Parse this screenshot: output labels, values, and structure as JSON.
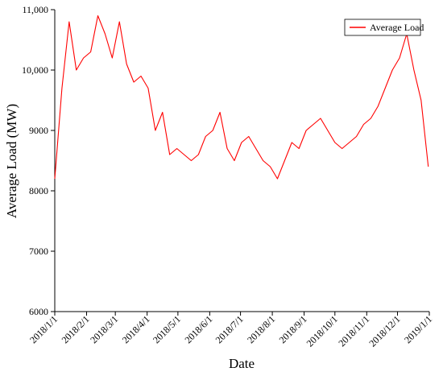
{
  "chart_data": {
    "type": "line",
    "title": "",
    "xlabel": "Date",
    "ylabel": "Average Load (MW)",
    "legend_position": "top-right",
    "grid": false,
    "ylim": [
      6000,
      11000
    ],
    "xlim": [
      "2018-01-01",
      "2019-01-01"
    ],
    "y_ticks": [
      6000,
      7000,
      8000,
      9000,
      10000,
      11000
    ],
    "y_tick_labels": [
      "6000",
      "7000",
      "8000",
      "9000",
      "10,000",
      "11,000"
    ],
    "x_tick_labels": [
      "2018/1/1",
      "2018/2/1",
      "2018/3/1",
      "2018/4/1",
      "2018/5/1",
      "2018/6/1",
      "2018/7/1",
      "2018/8/1",
      "2018/9/1",
      "2018/10/1",
      "2018/11/1",
      "2018/12/1",
      "2019/1/1"
    ],
    "x_tick_dates": [
      "2018-01-01",
      "2018-02-01",
      "2018-03-01",
      "2018-04-01",
      "2018-05-01",
      "2018-06-01",
      "2018-07-01",
      "2018-08-01",
      "2018-09-01",
      "2018-10-01",
      "2018-11-01",
      "2018-12-01",
      "2019-01-01"
    ],
    "series": [
      {
        "name": "Average Load",
        "color": "#ff0000",
        "x": [
          "2018-01-01",
          "2018-01-08",
          "2018-01-15",
          "2018-01-22",
          "2018-01-29",
          "2018-02-05",
          "2018-02-12",
          "2018-02-19",
          "2018-02-26",
          "2018-03-05",
          "2018-03-12",
          "2018-03-19",
          "2018-03-26",
          "2018-04-02",
          "2018-04-09",
          "2018-04-16",
          "2018-04-23",
          "2018-04-30",
          "2018-05-07",
          "2018-05-14",
          "2018-05-21",
          "2018-05-28",
          "2018-06-04",
          "2018-06-11",
          "2018-06-18",
          "2018-06-25",
          "2018-07-02",
          "2018-07-09",
          "2018-07-16",
          "2018-07-23",
          "2018-07-30",
          "2018-08-06",
          "2018-08-13",
          "2018-08-20",
          "2018-08-27",
          "2018-09-03",
          "2018-09-10",
          "2018-09-17",
          "2018-09-24",
          "2018-10-01",
          "2018-10-08",
          "2018-10-15",
          "2018-10-22",
          "2018-10-29",
          "2018-11-05",
          "2018-11-12",
          "2018-11-19",
          "2018-11-26",
          "2018-12-03",
          "2018-12-10",
          "2018-12-17",
          "2018-12-24",
          "2018-12-31"
        ],
        "values": [
          8200,
          9700,
          10800,
          10000,
          10200,
          10300,
          10900,
          10600,
          10200,
          10800,
          10100,
          9800,
          9900,
          9700,
          9000,
          9300,
          8600,
          8700,
          8600,
          8500,
          8600,
          8900,
          9000,
          9300,
          8700,
          8500,
          8800,
          8900,
          8700,
          8500,
          8400,
          8200,
          8500,
          8800,
          8700,
          9000,
          9100,
          9200,
          9000,
          8800,
          8700,
          8800,
          8900,
          9100,
          9200,
          9400,
          9700,
          10000,
          10200,
          10600,
          10000,
          9500,
          8400
        ]
      }
    ]
  }
}
